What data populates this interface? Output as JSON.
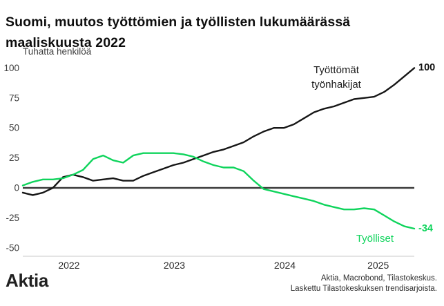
{
  "header": {
    "title": "Suomi, muutos työttömien ja työllisten lukumäärässä maaliskuusta 2022"
  },
  "chart_data": {
    "type": "line",
    "title": "Suomi, muutos työttömien ja työllisten lukumäärässä maaliskuusta 2022",
    "ylabel": "Tuhatta henkilöä",
    "ylim": [
      -50,
      100
    ],
    "yticks": [
      100,
      75,
      50,
      25,
      0,
      -25,
      -50
    ],
    "grid": false,
    "zero_line": true,
    "x": [
      "2022-03",
      "2022-04",
      "2022-05",
      "2022-06",
      "2022-07",
      "2022-08",
      "2022-09",
      "2022-10",
      "2022-11",
      "2022-12",
      "2023-01",
      "2023-02",
      "2023-03",
      "2023-04",
      "2023-05",
      "2023-06",
      "2023-07",
      "2023-08",
      "2023-09",
      "2023-10",
      "2023-11",
      "2023-12",
      "2024-01",
      "2024-02",
      "2024-03",
      "2024-04",
      "2024-05",
      "2024-06",
      "2024-07",
      "2024-08",
      "2024-09",
      "2024-10",
      "2024-11",
      "2024-12",
      "2025-01",
      "2025-02",
      "2025-03",
      "2025-04",
      "2025-05",
      "2025-06"
    ],
    "xticks": [
      {
        "label": "2022",
        "pos": 4.6
      },
      {
        "label": "2023",
        "pos": 15.1
      },
      {
        "label": "2024",
        "pos": 26.1
      },
      {
        "label": "2025",
        "pos": 35.4
      }
    ],
    "series": [
      {
        "name": "Työttömät työnhakijat",
        "color": "#161616",
        "end_label": "100",
        "values": [
          -4,
          -6,
          -4,
          0,
          9,
          11,
          9,
          6,
          7,
          8,
          6,
          6,
          10,
          13,
          16,
          19,
          21,
          24,
          27,
          30,
          32,
          35,
          38,
          43,
          47,
          50,
          50,
          53,
          58,
          63,
          66,
          68,
          71,
          74,
          75,
          76,
          80,
          86,
          93,
          100
        ]
      },
      {
        "name": "Työlliset",
        "color": "#0fd45c",
        "end_label": "-34",
        "values": [
          2,
          5,
          7,
          7,
          8,
          11,
          15,
          24,
          27,
          23,
          21,
          27,
          29,
          29,
          29,
          29,
          28,
          26,
          22,
          19,
          17,
          17,
          14,
          6,
          -1,
          -3,
          -5,
          -7,
          -9,
          -11,
          -14,
          -16,
          -18,
          -18,
          -17,
          -18,
          -23,
          -28,
          -32,
          -34
        ]
      }
    ]
  },
  "footer": {
    "logo": "Aktia",
    "source_line1": "Aktia, Macrobond, Tilastokeskus.",
    "source_line2": "Laskettu Tilastokeskuksen trendisarjoista."
  }
}
